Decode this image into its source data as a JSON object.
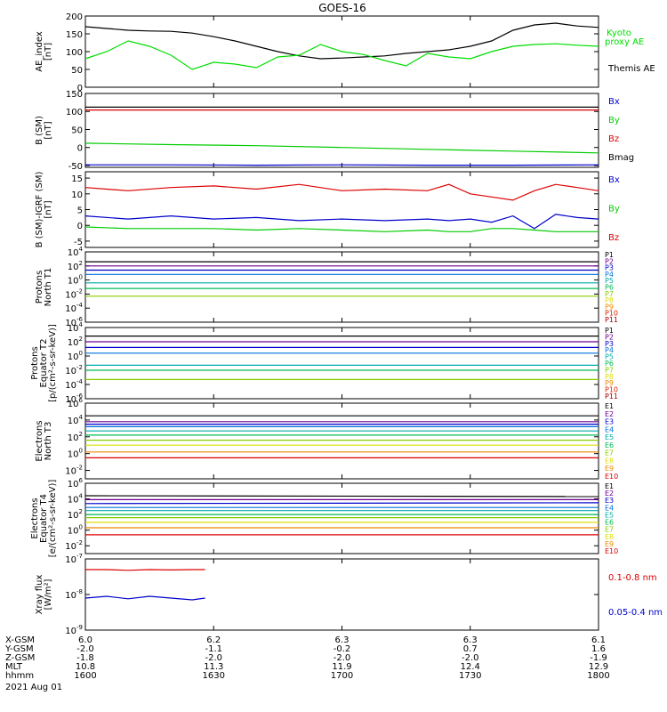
{
  "title": "GOES-16",
  "footer": {
    "row_labels": [
      "X-GSM",
      "Y-GSM",
      "Z-GSM",
      "MLT",
      "hhmm"
    ],
    "date": "2021 Aug 01",
    "columns": [
      [
        "6.0",
        "-2.0",
        "-1.8",
        "10.8",
        "1600"
      ],
      [
        "6.2",
        "-1.1",
        "-2.0",
        "11.3",
        "1630"
      ],
      [
        "6.3",
        "-0.2",
        "-2.0",
        "11.9",
        "1700"
      ],
      [
        "6.3",
        "0.7",
        "-2.0",
        "12.4",
        "1730"
      ],
      [
        "6.1",
        "1.6",
        "-1.9",
        "12.9",
        "1800"
      ]
    ]
  },
  "chart_data": [
    {
      "type": "line",
      "ylabel": [
        "AE_index",
        "[nT]"
      ],
      "ylim": [
        0,
        200
      ],
      "yticks": [
        "200",
        "150",
        "100",
        "50",
        "0"
      ],
      "legend": [
        {
          "label": "Kyoto proxy AE",
          "color": "#00dd00"
        },
        {
          "label": "Themis AE",
          "color": "#000000"
        }
      ],
      "x": [
        0,
        5,
        10,
        15,
        20,
        25,
        30,
        35,
        40,
        45,
        50,
        55,
        60,
        65,
        70,
        75,
        80,
        85,
        90,
        95,
        100,
        105,
        110,
        115,
        120
      ],
      "series": [
        {
          "name": "Themis AE",
          "color": "#000000",
          "values": [
            170,
            165,
            160,
            158,
            157,
            152,
            142,
            130,
            115,
            100,
            88,
            80,
            82,
            85,
            88,
            95,
            100,
            105,
            115,
            130,
            160,
            175,
            180,
            172,
            168
          ]
        },
        {
          "name": "Kyoto proxy AE",
          "color": "#00dd00",
          "values": [
            80,
            100,
            130,
            115,
            90,
            50,
            70,
            65,
            55,
            85,
            90,
            120,
            100,
            92,
            75,
            60,
            95,
            85,
            80,
            100,
            115,
            120,
            122,
            118,
            115
          ]
        }
      ]
    },
    {
      "type": "line",
      "ylabel": [
        "B (SM)",
        "[nT]"
      ],
      "ylim": [
        -55,
        150
      ],
      "yticks": [
        "150",
        "100",
        "50",
        "0",
        "-50"
      ],
      "legend": [
        {
          "label": "Bx",
          "color": "#0000cc"
        },
        {
          "label": "By",
          "color": "#00cc00"
        },
        {
          "label": "Bz",
          "color": "#dd0000"
        },
        {
          "label": "Bmag",
          "color": "#000000"
        }
      ],
      "x": [
        0,
        20,
        40,
        60,
        80,
        100,
        120
      ],
      "series": [
        {
          "name": "Bmag",
          "color": "#000000",
          "values": [
            112,
            112,
            112,
            112,
            112,
            112,
            112
          ]
        },
        {
          "name": "Bz",
          "color": "#dd0000",
          "values": [
            104,
            104,
            104,
            104,
            104,
            104,
            104
          ]
        },
        {
          "name": "By",
          "color": "#00cc00",
          "values": [
            12,
            8,
            5,
            0,
            -5,
            -10,
            -15
          ]
        },
        {
          "name": "Bx",
          "color": "#0000cc",
          "values": [
            -48,
            -48,
            -49,
            -48,
            -49,
            -49,
            -48
          ]
        }
      ]
    },
    {
      "type": "line",
      "ylabel": [
        "B (SM)-IGRF (SM)",
        "[nT]"
      ],
      "ylim": [
        -7,
        17
      ],
      "yticks": [
        "15",
        "10",
        "5",
        "0",
        "-5"
      ],
      "legend": [
        {
          "label": "Bx",
          "color": "#0000cc"
        },
        {
          "label": "By",
          "color": "#00cc00"
        },
        {
          "label": "Bz",
          "color": "#dd0000"
        }
      ],
      "x": [
        0,
        10,
        20,
        30,
        40,
        50,
        60,
        70,
        80,
        85,
        90,
        95,
        100,
        105,
        110,
        115,
        120
      ],
      "series": [
        {
          "name": "Bz",
          "color": "#dd0000",
          "values": [
            12,
            11,
            12,
            12.5,
            11.5,
            13,
            11,
            11.5,
            11,
            13,
            10,
            9,
            8,
            11,
            13,
            12,
            11
          ]
        },
        {
          "name": "Bx",
          "color": "#0000cc",
          "values": [
            3,
            2,
            3,
            2,
            2.5,
            1.5,
            2,
            1.5,
            2,
            1.5,
            2,
            1,
            3,
            -1,
            3.5,
            2.5,
            2
          ]
        },
        {
          "name": "By",
          "color": "#00cc00",
          "values": [
            -0.5,
            -1,
            -1,
            -1,
            -1.5,
            -1,
            -1.5,
            -2,
            -1.5,
            -2,
            -2,
            -1,
            -1,
            -1.5,
            -2,
            -2,
            -2
          ]
        }
      ]
    },
    {
      "type": "line",
      "log_y": true,
      "ylabel": [
        "Protons",
        "North T1"
      ],
      "ylim": [
        -6,
        4
      ],
      "yticks": [
        "10^4",
        "10^2",
        "10^0",
        "10^-2",
        "10^-4",
        "10^-6"
      ],
      "legend": [
        {
          "label": "P1",
          "color": "#000000"
        },
        {
          "label": "P2",
          "color": "#6a0090"
        },
        {
          "label": "P3",
          "color": "#0000cc"
        },
        {
          "label": "P4",
          "color": "#0070dd"
        },
        {
          "label": "P5",
          "color": "#00aaaa"
        },
        {
          "label": "P6",
          "color": "#00bb55"
        },
        {
          "label": "P7",
          "color": "#88cc00"
        },
        {
          "label": "P8",
          "color": "#dddd00"
        },
        {
          "label": "P9",
          "color": "#ee8800"
        },
        {
          "label": "P10",
          "color": "#dd2200"
        },
        {
          "label": "P11",
          "color": "#aa0000"
        }
      ],
      "series": [
        {
          "name": "P1",
          "color": "#000000",
          "values": [
            2.6,
            2.6
          ]
        },
        {
          "name": "P2",
          "color": "#6a0090",
          "values": [
            2.0,
            2.0
          ]
        },
        {
          "name": "P3",
          "color": "#0000cc",
          "values": [
            1.4,
            1.4
          ]
        },
        {
          "name": "P4",
          "color": "#0070dd",
          "values": [
            0.8,
            0.8
          ]
        },
        {
          "name": "P5",
          "color": "#00aaaa",
          "values": [
            -0.4,
            -0.4
          ]
        },
        {
          "name": "P6",
          "color": "#00bb55",
          "values": [
            -1.2,
            -1.2
          ]
        },
        {
          "name": "P7",
          "color": "#88cc00",
          "values": [
            -2.3,
            -2.3
          ]
        }
      ]
    },
    {
      "type": "line",
      "log_y": true,
      "ylabel": [
        "Protons",
        "Equator T2",
        "[p/(cm²-s-sr-keV)]"
      ],
      "ylim": [
        -6,
        4
      ],
      "yticks": [
        "10^4",
        "10^2",
        "10^0",
        "10^-2",
        "10^-4",
        "10^-6"
      ],
      "legend": [
        {
          "label": "P1",
          "color": "#000000"
        },
        {
          "label": "P2",
          "color": "#6a0090"
        },
        {
          "label": "P3",
          "color": "#0000cc"
        },
        {
          "label": "P4",
          "color": "#0070dd"
        },
        {
          "label": "P5",
          "color": "#00aaaa"
        },
        {
          "label": "P6",
          "color": "#00bb55"
        },
        {
          "label": "P7",
          "color": "#88cc00"
        },
        {
          "label": "P8",
          "color": "#dddd00"
        },
        {
          "label": "P9",
          "color": "#ee8800"
        },
        {
          "label": "P10",
          "color": "#dd2200"
        },
        {
          "label": "P11",
          "color": "#aa0000"
        }
      ],
      "series": [
        {
          "name": "P1",
          "color": "#000000",
          "values": [
            2.8,
            2.8
          ]
        },
        {
          "name": "P2",
          "color": "#6a0090",
          "values": [
            2.0,
            2.0
          ]
        },
        {
          "name": "P3",
          "color": "#0000cc",
          "values": [
            1.2,
            1.2
          ]
        },
        {
          "name": "P4",
          "color": "#0070dd",
          "values": [
            0.4,
            0.4
          ]
        },
        {
          "name": "P5",
          "color": "#00aaaa",
          "values": [
            -1.3,
            -1.3
          ]
        },
        {
          "name": "P6",
          "color": "#00bb55",
          "values": [
            -2.0,
            -2.0
          ]
        },
        {
          "name": "P7",
          "color": "#88cc00",
          "values": [
            -3.3,
            -3.3
          ]
        }
      ]
    },
    {
      "type": "line",
      "log_y": true,
      "ylabel": [
        "Electrons",
        "North T3"
      ],
      "ylim": [
        -3,
        6
      ],
      "yticks": [
        "10^6",
        "10^4",
        "10^2",
        "10^0",
        "10^-2"
      ],
      "legend": [
        {
          "label": "E1",
          "color": "#000000"
        },
        {
          "label": "E2",
          "color": "#6a0090"
        },
        {
          "label": "E3",
          "color": "#0000cc"
        },
        {
          "label": "E4",
          "color": "#0070dd"
        },
        {
          "label": "E5",
          "color": "#00aaaa"
        },
        {
          "label": "E6",
          "color": "#00bb55"
        },
        {
          "label": "E7",
          "color": "#88cc00"
        },
        {
          "label": "E8",
          "color": "#dddd00"
        },
        {
          "label": "E9",
          "color": "#ee8800"
        },
        {
          "label": "E10",
          "color": "#dd0000"
        }
      ],
      "series": [
        {
          "name": "E1",
          "color": "#000000",
          "values": [
            4.5,
            4.5
          ]
        },
        {
          "name": "E2",
          "color": "#6a0090",
          "values": [
            3.8,
            3.8
          ]
        },
        {
          "name": "E3",
          "color": "#0000cc",
          "values": [
            3.5,
            3.5
          ]
        },
        {
          "name": "E4",
          "color": "#0070dd",
          "values": [
            3.2,
            3.2
          ]
        },
        {
          "name": "E5",
          "color": "#00aaaa",
          "values": [
            2.7,
            2.7
          ]
        },
        {
          "name": "E6",
          "color": "#00bb55",
          "values": [
            2.2,
            2.2
          ]
        },
        {
          "name": "E7",
          "color": "#88cc00",
          "values": [
            1.6,
            1.6
          ]
        },
        {
          "name": "E8",
          "color": "#dddd00",
          "values": [
            1.0,
            1.0
          ]
        },
        {
          "name": "E9",
          "color": "#ee8800",
          "values": [
            0.2,
            0.2
          ]
        },
        {
          "name": "E10",
          "color": "#dd0000",
          "values": [
            -0.5,
            -0.5
          ]
        }
      ]
    },
    {
      "type": "line",
      "log_y": true,
      "ylabel": [
        "Electrons",
        "Equator T4",
        "[e/(cm²-s-sr-keV)]"
      ],
      "ylim": [
        -3,
        6
      ],
      "yticks": [
        "10^6",
        "10^4",
        "10^2",
        "10^0",
        "10^-2"
      ],
      "legend": [
        {
          "label": "E1",
          "color": "#000000"
        },
        {
          "label": "E2",
          "color": "#6a0090"
        },
        {
          "label": "E3",
          "color": "#0000cc"
        },
        {
          "label": "E4",
          "color": "#0070dd"
        },
        {
          "label": "E5",
          "color": "#00aaaa"
        },
        {
          "label": "E6",
          "color": "#00bb55"
        },
        {
          "label": "E7",
          "color": "#88cc00"
        },
        {
          "label": "E8",
          "color": "#dddd00"
        },
        {
          "label": "E9",
          "color": "#ee8800"
        },
        {
          "label": "E10",
          "color": "#dd0000"
        }
      ],
      "series": [
        {
          "name": "E1",
          "color": "#000000",
          "values": [
            4.4,
            4.3
          ]
        },
        {
          "name": "E2",
          "color": "#6a0090",
          "values": [
            3.9,
            3.9
          ]
        },
        {
          "name": "E3",
          "color": "#0000cc",
          "values": [
            3.4,
            3.5
          ]
        },
        {
          "name": "E4",
          "color": "#0070dd",
          "values": [
            2.9,
            2.9
          ]
        },
        {
          "name": "E5",
          "color": "#00aaaa",
          "values": [
            2.5,
            2.5
          ]
        },
        {
          "name": "E6",
          "color": "#00bb55",
          "values": [
            2.0,
            2.0
          ]
        },
        {
          "name": "E7",
          "color": "#88cc00",
          "values": [
            1.6,
            1.6
          ]
        },
        {
          "name": "E8",
          "color": "#dddd00",
          "values": [
            1.0,
            1.0
          ]
        },
        {
          "name": "E9",
          "color": "#ee8800",
          "values": [
            0.3,
            0.3
          ]
        },
        {
          "name": "E10",
          "color": "#dd0000",
          "values": [
            -0.6,
            -0.6
          ]
        }
      ]
    },
    {
      "type": "line",
      "log_y": true,
      "ylabel": [
        "Xray flux",
        "[W/m²]"
      ],
      "ylim": [
        -9,
        -7
      ],
      "yticks": [
        "10^-7",
        "10^-8",
        "10^-9"
      ],
      "legend": [
        {
          "label": "0.1-0.8 nm",
          "color": "#dd0000"
        },
        {
          "label": "0.05-0.4 nm",
          "color": "#0000cc"
        }
      ],
      "x": [
        0,
        5,
        10,
        15,
        20,
        25,
        28
      ],
      "series": [
        {
          "name": "0.1-0.8 nm",
          "color": "#dd0000",
          "values": [
            -7.3,
            -7.3,
            -7.32,
            -7.3,
            -7.31,
            -7.3,
            -7.3
          ]
        },
        {
          "name": "0.05-0.4 nm",
          "color": "#0000cc",
          "values": [
            -8.1,
            -8.05,
            -8.12,
            -8.05,
            -8.1,
            -8.15,
            -8.1
          ]
        }
      ]
    }
  ]
}
